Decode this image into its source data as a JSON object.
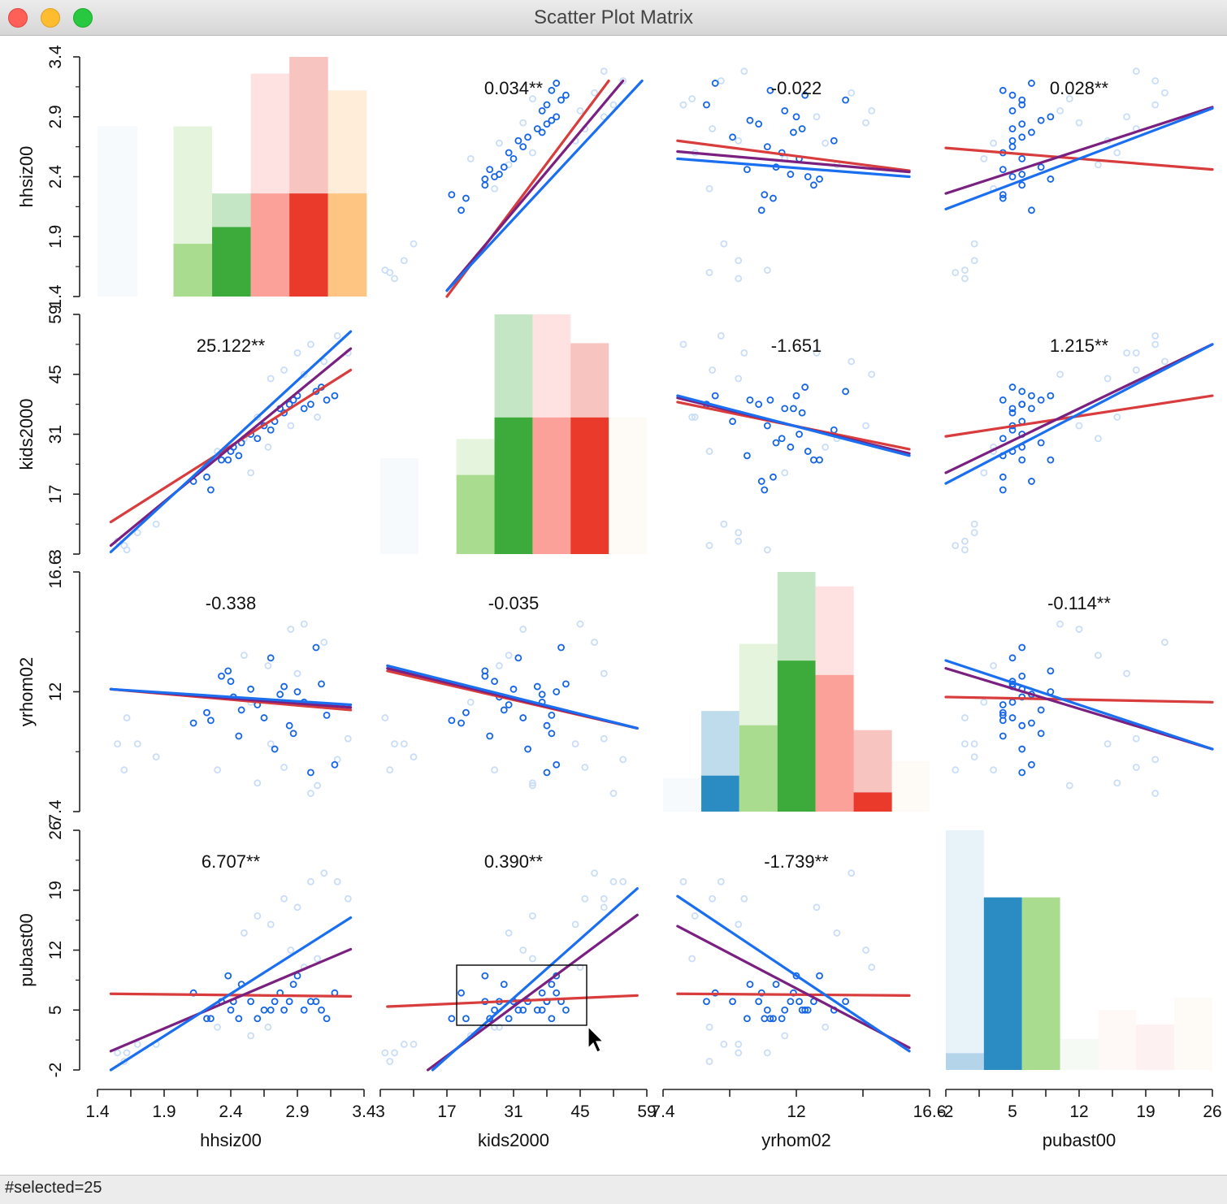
{
  "window": {
    "title": "Scatter Plot Matrix"
  },
  "status": {
    "text": "#selected=25"
  },
  "colors": {
    "selected_point": "#1565e6",
    "unselected_point": "#c9ddf7",
    "fit_all": "#1a6ff0",
    "fit_selected": "#7a2080",
    "fit_unselected": "#d83c3c",
    "selection_box": "#000000"
  },
  "chart_data": {
    "type": "scatter-matrix",
    "variables": [
      {
        "name": "hhsiz00",
        "range": [
          1.4,
          3.4
        ],
        "ticks": [
          "1.4",
          "1.9",
          "2.4",
          "2.9",
          "3.4"
        ]
      },
      {
        "name": "kids2000",
        "range": [
          3,
          59
        ],
        "ticks": [
          "3",
          "17",
          "31",
          "45",
          "59"
        ]
      },
      {
        "name": "yrhom02",
        "range": [
          7.4,
          16.6
        ],
        "ticks": [
          "7.4",
          "12",
          "16.6"
        ]
      },
      {
        "name": "pubast00",
        "range": [
          -2,
          26
        ],
        "ticks": [
          "-2",
          "5",
          "12",
          "19",
          "26"
        ]
      }
    ],
    "slopes": [
      [
        "",
        "0.034**",
        "-0.022",
        "0.028**"
      ],
      [
        "25.122**",
        "",
        "-1.651",
        "1.215**"
      ],
      [
        "-0.338",
        "-0.035",
        "",
        "-0.114**"
      ],
      [
        "6.707**",
        "0.390**",
        "-1.739**",
        ""
      ]
    ],
    "regression_lines": "per off-diagonal cell: [x0, y0, x1, y1] in data units for all / selected / unselected",
    "lines": {
      "0-1": {
        "all": [
          17,
          1.45,
          58,
          3.2
        ],
        "selected": [
          17,
          1.45,
          54,
          3.2
        ],
        "unselected": [
          17,
          1.4,
          51,
          3.2
        ]
      },
      "0-2": {
        "all": [
          7.9,
          2.55,
          15.9,
          2.4
        ],
        "selected": [
          7.9,
          2.61,
          15.9,
          2.44
        ],
        "unselected": [
          7.9,
          2.7,
          15.9,
          2.45
        ]
      },
      "0-3": {
        "all": [
          -2,
          2.13,
          26,
          2.97
        ],
        "selected": [
          -2,
          2.26,
          26,
          2.98
        ],
        "unselected": [
          -2,
          2.64,
          26,
          2.46
        ]
      },
      "1-0": {
        "all": [
          1.5,
          3.5,
          3.3,
          55
        ],
        "selected": [
          1.5,
          5.0,
          3.3,
          51
        ],
        "unselected": [
          1.5,
          10.5,
          3.3,
          46
        ]
      },
      "1-2": {
        "all": [
          7.9,
          40,
          15.9,
          26
        ],
        "selected": [
          7.9,
          39.5,
          15.9,
          26.5
        ],
        "unselected": [
          7.9,
          38.5,
          15.9,
          27.5
        ]
      },
      "1-3": {
        "all": [
          -2,
          19.5,
          26,
          52
        ],
        "selected": [
          -2,
          22,
          26,
          52
        ],
        "unselected": [
          -2,
          30.5,
          26,
          40
        ]
      },
      "2-0": {
        "all": [
          1.5,
          12.1,
          3.3,
          11.5
        ],
        "selected": [
          1.5,
          12.1,
          3.3,
          11.4
        ],
        "unselected": [
          1.5,
          12.1,
          3.3,
          11.3
        ]
      },
      "2-1": {
        "all": [
          4.5,
          13.0,
          57,
          10.6
        ],
        "selected": [
          4.5,
          12.9,
          57,
          10.6
        ],
        "unselected": [
          4.5,
          12.8,
          57,
          10.6
        ]
      },
      "2-3": {
        "all": [
          -2,
          13.2,
          26,
          9.8
        ],
        "selected": [
          -2,
          12.9,
          26,
          9.8
        ],
        "unselected": [
          -2,
          11.8,
          26,
          11.6
        ]
      },
      "3-0": {
        "all": [
          1.5,
          -2,
          3.3,
          15.8
        ],
        "selected": [
          1.5,
          0.2,
          3.3,
          12.1
        ],
        "unselected": [
          1.5,
          6.9,
          3.3,
          6.6
        ]
      },
      "3-1": {
        "all": [
          14,
          -2,
          57,
          19.2
        ],
        "selected": [
          13,
          -2,
          57,
          16.1
        ],
        "unselected": [
          4.5,
          5.4,
          57,
          6.7
        ]
      },
      "3-2": {
        "all": [
          7.9,
          18.3,
          15.9,
          0.2
        ],
        "selected": [
          7.9,
          14.8,
          15.9,
          0.6
        ],
        "unselected": [
          7.9,
          6.9,
          15.9,
          6.7
        ]
      }
    },
    "histograms": {
      "0": [
        {
          "x0": 1.4,
          "x1": 1.7,
          "total": 0.71,
          "selected": 0.0,
          "color": "#e6eef8"
        },
        {
          "x0": 1.97,
          "x1": 2.26,
          "total": 0.71,
          "selected": 0.22,
          "color": "#a9dc8e"
        },
        {
          "x0": 2.26,
          "x1": 2.55,
          "total": 0.43,
          "selected": 0.29,
          "color": "#3cab3b"
        },
        {
          "x0": 2.55,
          "x1": 2.84,
          "total": 0.93,
          "selected": 0.43,
          "color": "#fca09a"
        },
        {
          "x0": 2.84,
          "x1": 3.13,
          "total": 1.0,
          "selected": 0.43,
          "color": "#e93a2b"
        },
        {
          "x0": 3.13,
          "x1": 3.42,
          "total": 0.86,
          "selected": 0.43,
          "color": "#fec582"
        }
      ],
      "1": [
        {
          "x0": 3,
          "x1": 11,
          "total": 0.4,
          "selected": 0.0,
          "color": "#e6eef8"
        },
        {
          "x0": 19,
          "x1": 27,
          "total": 0.48,
          "selected": 0.33,
          "color": "#a9dc8e"
        },
        {
          "x0": 27,
          "x1": 35,
          "total": 1.0,
          "selected": 0.57,
          "color": "#3cab3b"
        },
        {
          "x0": 35,
          "x1": 43,
          "total": 1.0,
          "selected": 0.57,
          "color": "#fca09a"
        },
        {
          "x0": 43,
          "x1": 51,
          "total": 0.88,
          "selected": 0.57,
          "color": "#e93a2b"
        },
        {
          "x0": 51,
          "x1": 59,
          "total": 0.57,
          "selected": 0.0,
          "color": "#fdeedd"
        }
      ],
      "2": [
        {
          "x0": 7.4,
          "x1": 8.72,
          "total": 0.14,
          "selected": 0.0,
          "color": "#e6eef8"
        },
        {
          "x0": 8.72,
          "x1": 10.03,
          "total": 0.42,
          "selected": 0.15,
          "color": "#2b8cc4"
        },
        {
          "x0": 10.03,
          "x1": 11.35,
          "total": 0.7,
          "selected": 0.36,
          "color": "#a9dc8e"
        },
        {
          "x0": 11.35,
          "x1": 12.66,
          "total": 1.0,
          "selected": 0.63,
          "color": "#3cab3b"
        },
        {
          "x0": 12.66,
          "x1": 13.98,
          "total": 0.94,
          "selected": 0.57,
          "color": "#fca09a"
        },
        {
          "x0": 13.98,
          "x1": 15.3,
          "total": 0.34,
          "selected": 0.08,
          "color": "#e93a2b"
        },
        {
          "x0": 15.3,
          "x1": 16.6,
          "total": 0.21,
          "selected": 0.0,
          "color": "#fdeedd"
        }
      ],
      "3": [
        {
          "x0": -2,
          "x1": 2.0,
          "total": 1.0,
          "selected": 0.07,
          "color": "#b4d4ea"
        },
        {
          "x0": 2.0,
          "x1": 6.0,
          "total": 0.72,
          "selected": 0.72,
          "color": "#2b8cc4"
        },
        {
          "x0": 6.0,
          "x1": 10.0,
          "total": 0.72,
          "selected": 0.72,
          "color": "#a9dc8e"
        },
        {
          "x0": 10.0,
          "x1": 14.0,
          "total": 0.13,
          "selected": 0.0,
          "color": "#e2f0dd"
        },
        {
          "x0": 14.0,
          "x1": 18.0,
          "total": 0.25,
          "selected": 0.0,
          "color": "#fde7e6"
        },
        {
          "x0": 18.0,
          "x1": 22.0,
          "total": 0.19,
          "selected": 0.0,
          "color": "#fad4d2"
        },
        {
          "x0": 22.0,
          "x1": 26.0,
          "total": 0.3,
          "selected": 0.0,
          "color": "#fdeedd"
        }
      ]
    },
    "observations": [
      [
        1.55,
        6,
        10,
        0,
        0
      ],
      [
        1.6,
        5,
        9,
        -1,
        0
      ],
      [
        1.62,
        4,
        11,
        0,
        0
      ],
      [
        1.7,
        8,
        10,
        1,
        0
      ],
      [
        1.84,
        10,
        9.5,
        1,
        0
      ],
      [
        2.12,
        20,
        10.8,
        7,
        1
      ],
      [
        2.22,
        21,
        11.2,
        4,
        1
      ],
      [
        2.25,
        18,
        10.9,
        4,
        1
      ],
      [
        2.33,
        25,
        12.6,
        6,
        1
      ],
      [
        2.38,
        25,
        12.8,
        9,
        1
      ],
      [
        2.4,
        27,
        12.4,
        5,
        1
      ],
      [
        2.42,
        28,
        11.8,
        6,
        1
      ],
      [
        2.46,
        26,
        10.3,
        4,
        1
      ],
      [
        2.48,
        29,
        11.3,
        8,
        1
      ],
      [
        2.55,
        31,
        12.1,
        6,
        1
      ],
      [
        2.6,
        30,
        11.5,
        4,
        1
      ],
      [
        2.65,
        33,
        11.0,
        5,
        1
      ],
      [
        2.7,
        32,
        13.3,
        5,
        1
      ],
      [
        2.73,
        34,
        9.8,
        6,
        1
      ],
      [
        2.77,
        37,
        11.9,
        7,
        1
      ],
      [
        2.8,
        36,
        12.2,
        5,
        1
      ],
      [
        2.84,
        38,
        10.7,
        6,
        1
      ],
      [
        2.87,
        39,
        10.4,
        8,
        1
      ],
      [
        2.9,
        40,
        12.0,
        9,
        1
      ],
      [
        2.95,
        37,
        11.6,
        5,
        1
      ],
      [
        3.0,
        38,
        8.9,
        6,
        1
      ],
      [
        3.04,
        41,
        13.7,
        6,
        1
      ],
      [
        3.08,
        42,
        12.3,
        5,
        1
      ],
      [
        3.12,
        39,
        11.1,
        4,
        1
      ],
      [
        3.18,
        40,
        9.2,
        7,
        1
      ],
      [
        2.3,
        27,
        9.0,
        3,
        0
      ],
      [
        2.5,
        30,
        13.4,
        14,
        0
      ],
      [
        2.6,
        35,
        8.5,
        16,
        0
      ],
      [
        2.7,
        44,
        10.0,
        15,
        0
      ],
      [
        2.8,
        46,
        9.1,
        18,
        0
      ],
      [
        2.9,
        50,
        12.7,
        17,
        0
      ],
      [
        3.0,
        52,
        8.1,
        20,
        0
      ],
      [
        3.1,
        48,
        13.9,
        21,
        0
      ],
      [
        3.2,
        54,
        9.4,
        20,
        0
      ],
      [
        3.28,
        50,
        10.2,
        18,
        0
      ],
      [
        2.85,
        33,
        14.4,
        12,
        0
      ],
      [
        2.95,
        45,
        14.6,
        10,
        0
      ],
      [
        2.55,
        22,
        11.6,
        2,
        0
      ],
      [
        2.68,
        28,
        13.0,
        3,
        0
      ],
      [
        3.05,
        35,
        8.4,
        11,
        0
      ]
    ]
  }
}
